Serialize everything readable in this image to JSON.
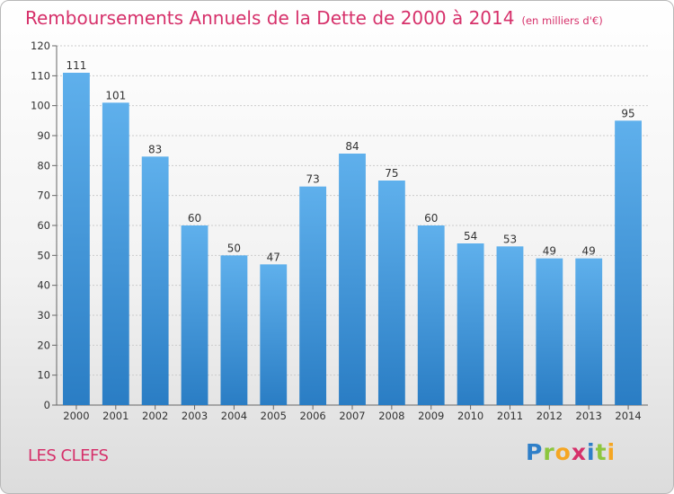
{
  "title": "Remboursements Annuels de la Dette de 2000 à 2014",
  "unit": "(en milliers d'€)",
  "city": "LES CLEFS",
  "brand": {
    "text": "Proxiti",
    "letters": [
      {
        "ch": "P",
        "color": "#2f7fc8"
      },
      {
        "ch": "r",
        "color": "#8cc63e"
      },
      {
        "ch": "o",
        "color": "#f5a623"
      },
      {
        "ch": "x",
        "color": "#d6306a"
      },
      {
        "ch": "i",
        "color": "#2f7fc8"
      },
      {
        "ch": "t",
        "color": "#8cc63e"
      },
      {
        "ch": "i",
        "color": "#f5a623"
      }
    ]
  },
  "colors": {
    "bar_top": "#5fb0ec",
    "bar_bottom": "#2a7dc4",
    "title": "#d6306a",
    "text": "#333333",
    "grid": "#cccccc"
  },
  "chart_data": {
    "type": "bar",
    "title": "Remboursements Annuels de la Dette de 2000 à 2014",
    "xlabel": "",
    "ylabel": "",
    "ylim": [
      0,
      120
    ],
    "yticks": [
      0,
      10,
      20,
      30,
      40,
      50,
      60,
      70,
      80,
      90,
      100,
      110,
      120
    ],
    "grid": true,
    "categories": [
      "2000",
      "2001",
      "2002",
      "2003",
      "2004",
      "2005",
      "2006",
      "2007",
      "2008",
      "2009",
      "2010",
      "2011",
      "2012",
      "2013",
      "2014"
    ],
    "values": [
      111,
      101,
      83,
      60,
      50,
      47,
      73,
      84,
      75,
      60,
      54,
      53,
      49,
      49,
      95
    ]
  }
}
